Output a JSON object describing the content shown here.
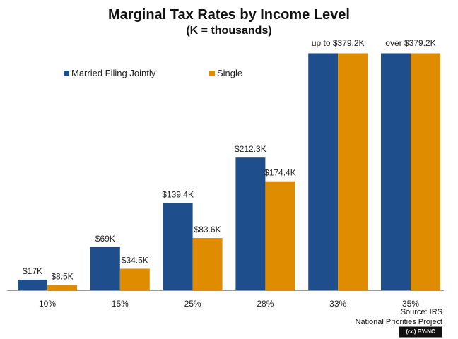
{
  "chart_data": {
    "type": "bar",
    "title": "Marginal  Tax Rates by Income Level",
    "subtitle": "(K = thousands)",
    "categories": [
      "10%",
      "15%",
      "25%",
      "28%",
      "33%",
      "35%"
    ],
    "series": [
      {
        "name": "Married Filing Jointly",
        "color": "#1f4e8c",
        "values": [
          17,
          69,
          139.4,
          212.3,
          379.2,
          379.2
        ],
        "labels": [
          "$17K",
          "$69K",
          "$139.4K",
          "$212.3K",
          "",
          ""
        ]
      },
      {
        "name": "Single",
        "color": "#e08c00",
        "values": [
          8.5,
          34.5,
          83.6,
          174.4,
          379.2,
          379.2
        ],
        "labels": [
          "$8.5K",
          "$34.5K",
          "$83.6K",
          "$174.4K",
          "",
          ""
        ]
      }
    ],
    "group_labels": [
      "",
      "",
      "",
      "",
      "up to $379.2K",
      "over  $379.2K"
    ],
    "ylim": [
      0,
      382
    ],
    "grid": false,
    "legend": "top-left",
    "source": "Source: IRS",
    "source_org": "National Priorities Project",
    "license_badge": "BY-NC"
  }
}
